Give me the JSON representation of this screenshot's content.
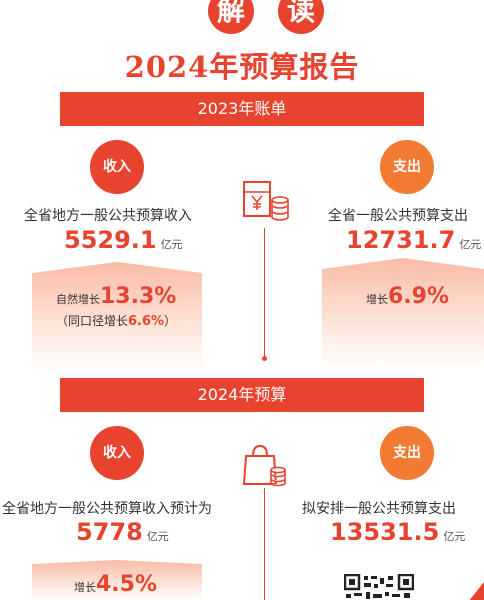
{
  "header": {
    "chars": [
      "解",
      "读"
    ],
    "title": "2024年预算报告"
  },
  "sections": [
    {
      "bar_label": "2023年账单",
      "income": {
        "badge": "收入",
        "label": "全省地方一般公共预算收入",
        "value": "5529.1",
        "unit": "亿元",
        "growth_prefix": "自然增长",
        "growth_value": "13.3%",
        "note_prefix": "（同口径增长",
        "note_value": "6.6%",
        "note_suffix": "）"
      },
      "expense": {
        "badge": "支出",
        "label": "全省一般公共预算支出",
        "value": "12731.7",
        "unit": "亿元",
        "growth_prefix": "增长",
        "growth_value": "6.9%"
      }
    },
    {
      "bar_label": "2024年预算",
      "income": {
        "badge": "收入",
        "label": "全省地方一般公共预算收入预计为",
        "value": "5778",
        "unit": "亿元",
        "growth_prefix": "增长",
        "growth_value": "4.5%"
      },
      "expense": {
        "badge": "支出",
        "label": "拟安排一般公共预算支出",
        "value": "13531.5",
        "unit": "亿元"
      }
    }
  ],
  "icons": {
    "bill": "bill-coins-icon",
    "bag": "shopping-bag-coins-icon",
    "qr": "qr-code-icon"
  },
  "colors": {
    "primary_red": "#e8432f",
    "accent_orange": "#f27a32"
  }
}
